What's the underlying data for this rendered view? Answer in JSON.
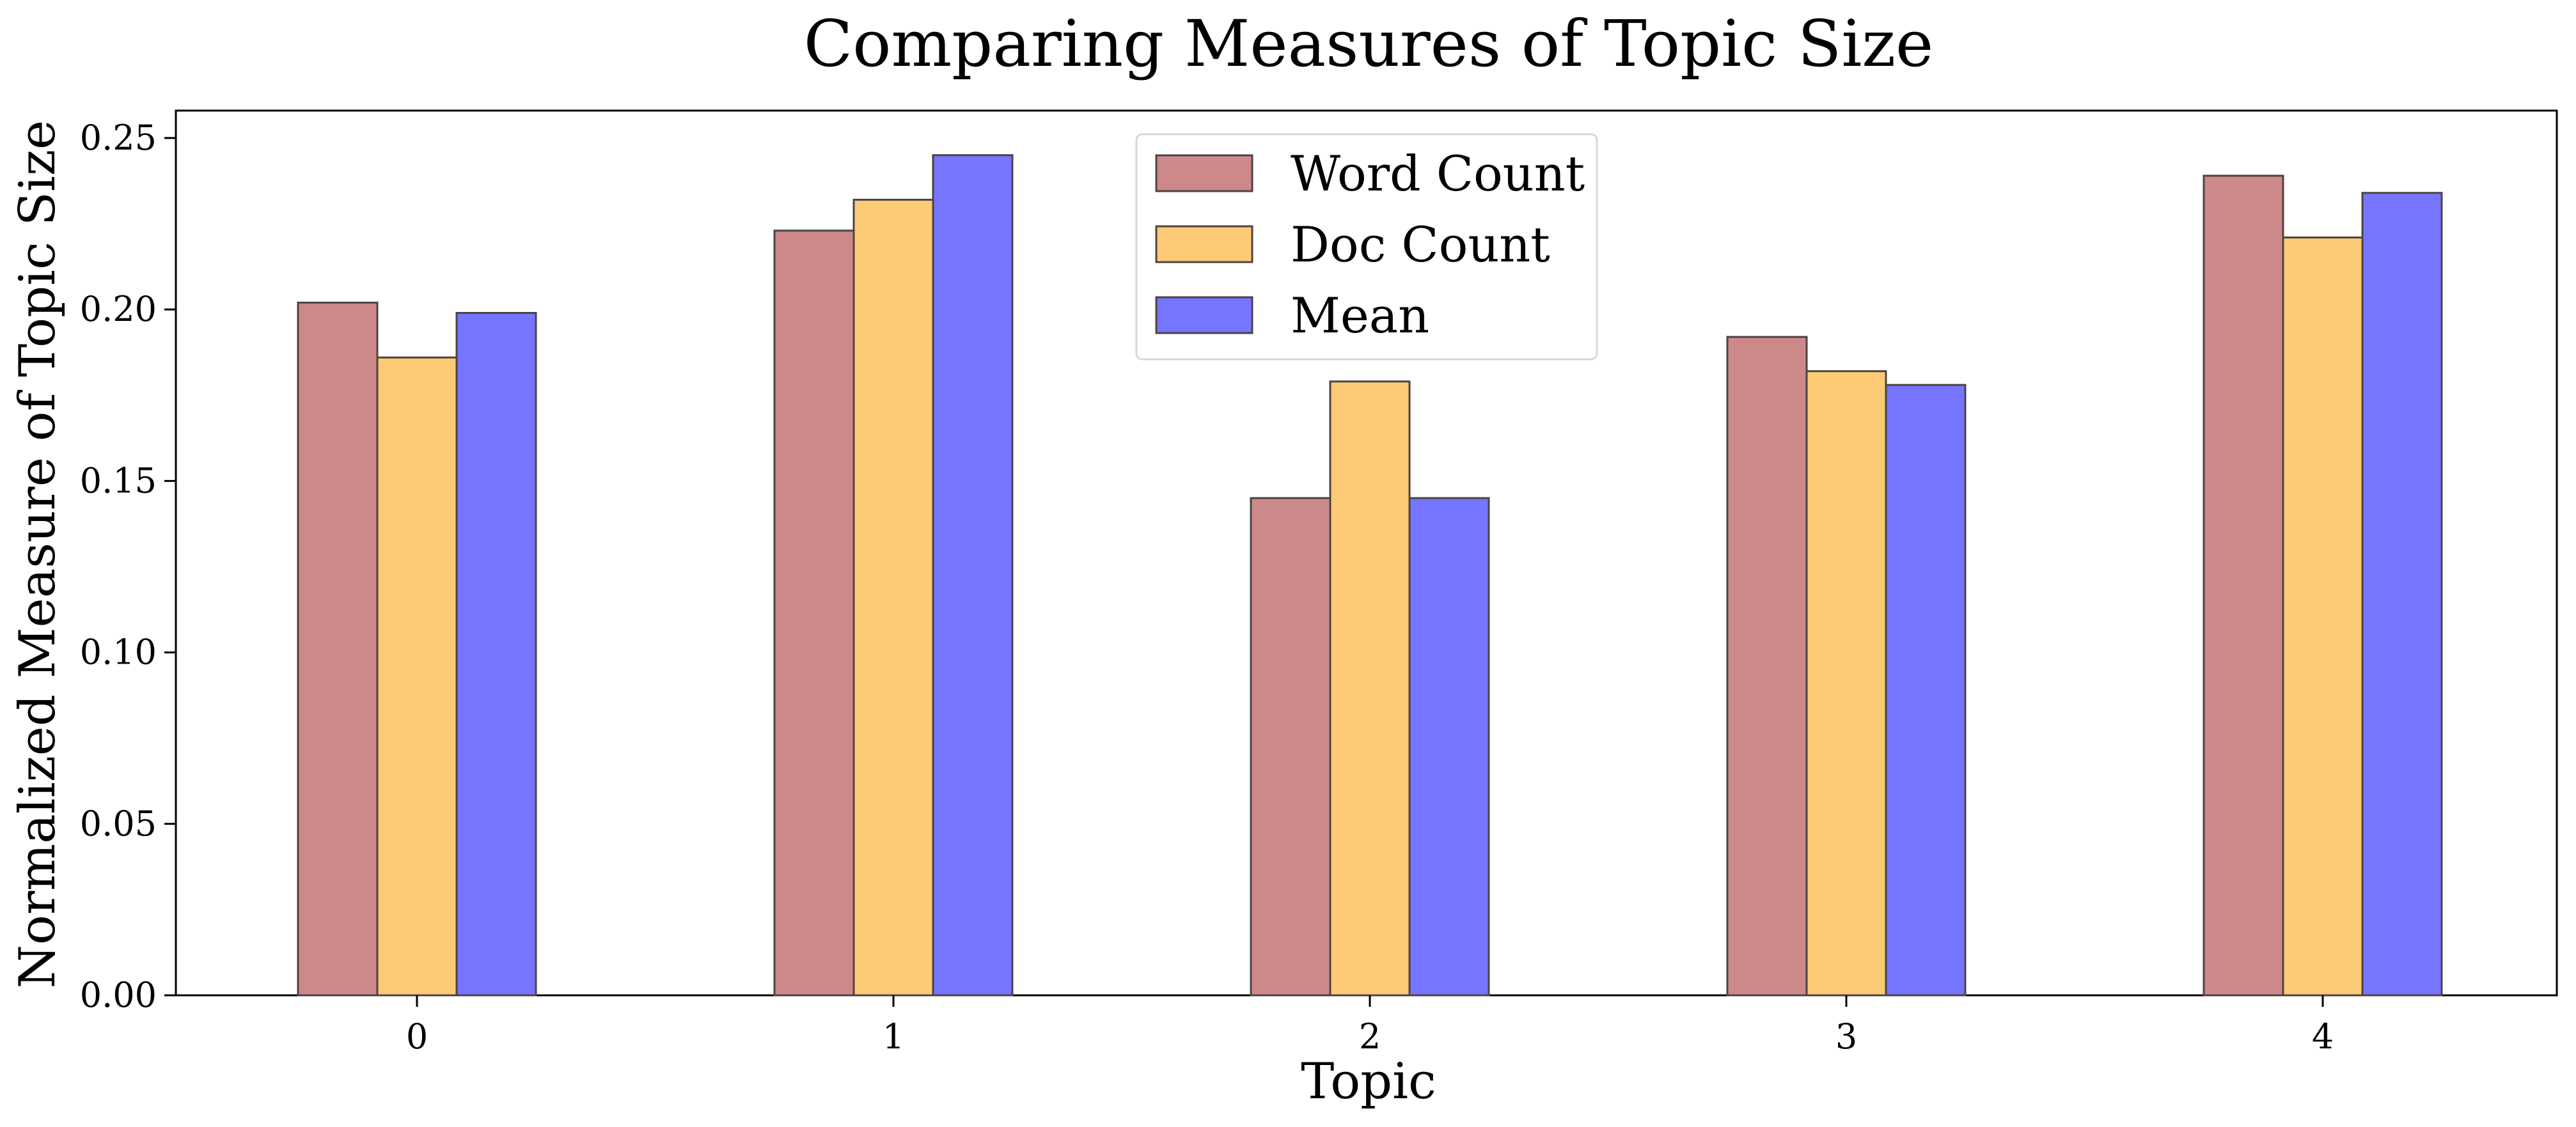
{
  "chart_data": {
    "type": "bar",
    "title": "Comparing Measures of Topic Size",
    "xlabel": "Topic",
    "ylabel": "Normalized Measure of Topic Size",
    "categories": [
      "0",
      "1",
      "2",
      "3",
      "4"
    ],
    "series": [
      {
        "name": "Word Count",
        "values": [
          0.202,
          0.223,
          0.145,
          0.192,
          0.239
        ],
        "color": "#cd8989"
      },
      {
        "name": "Doc Count",
        "values": [
          0.186,
          0.232,
          0.179,
          0.182,
          0.221
        ],
        "color": "#fdcb75"
      },
      {
        "name": "Mean",
        "values": [
          0.199,
          0.245,
          0.145,
          0.178,
          0.234
        ],
        "color": "#7575ff"
      }
    ],
    "bar_edge_color": "#4d4343",
    "ylim": [
      0,
      0.258
    ],
    "yticks": [
      "0.00",
      "0.05",
      "0.10",
      "0.15",
      "0.20",
      "0.25"
    ],
    "grid": false,
    "legend_position": "top-center"
  }
}
